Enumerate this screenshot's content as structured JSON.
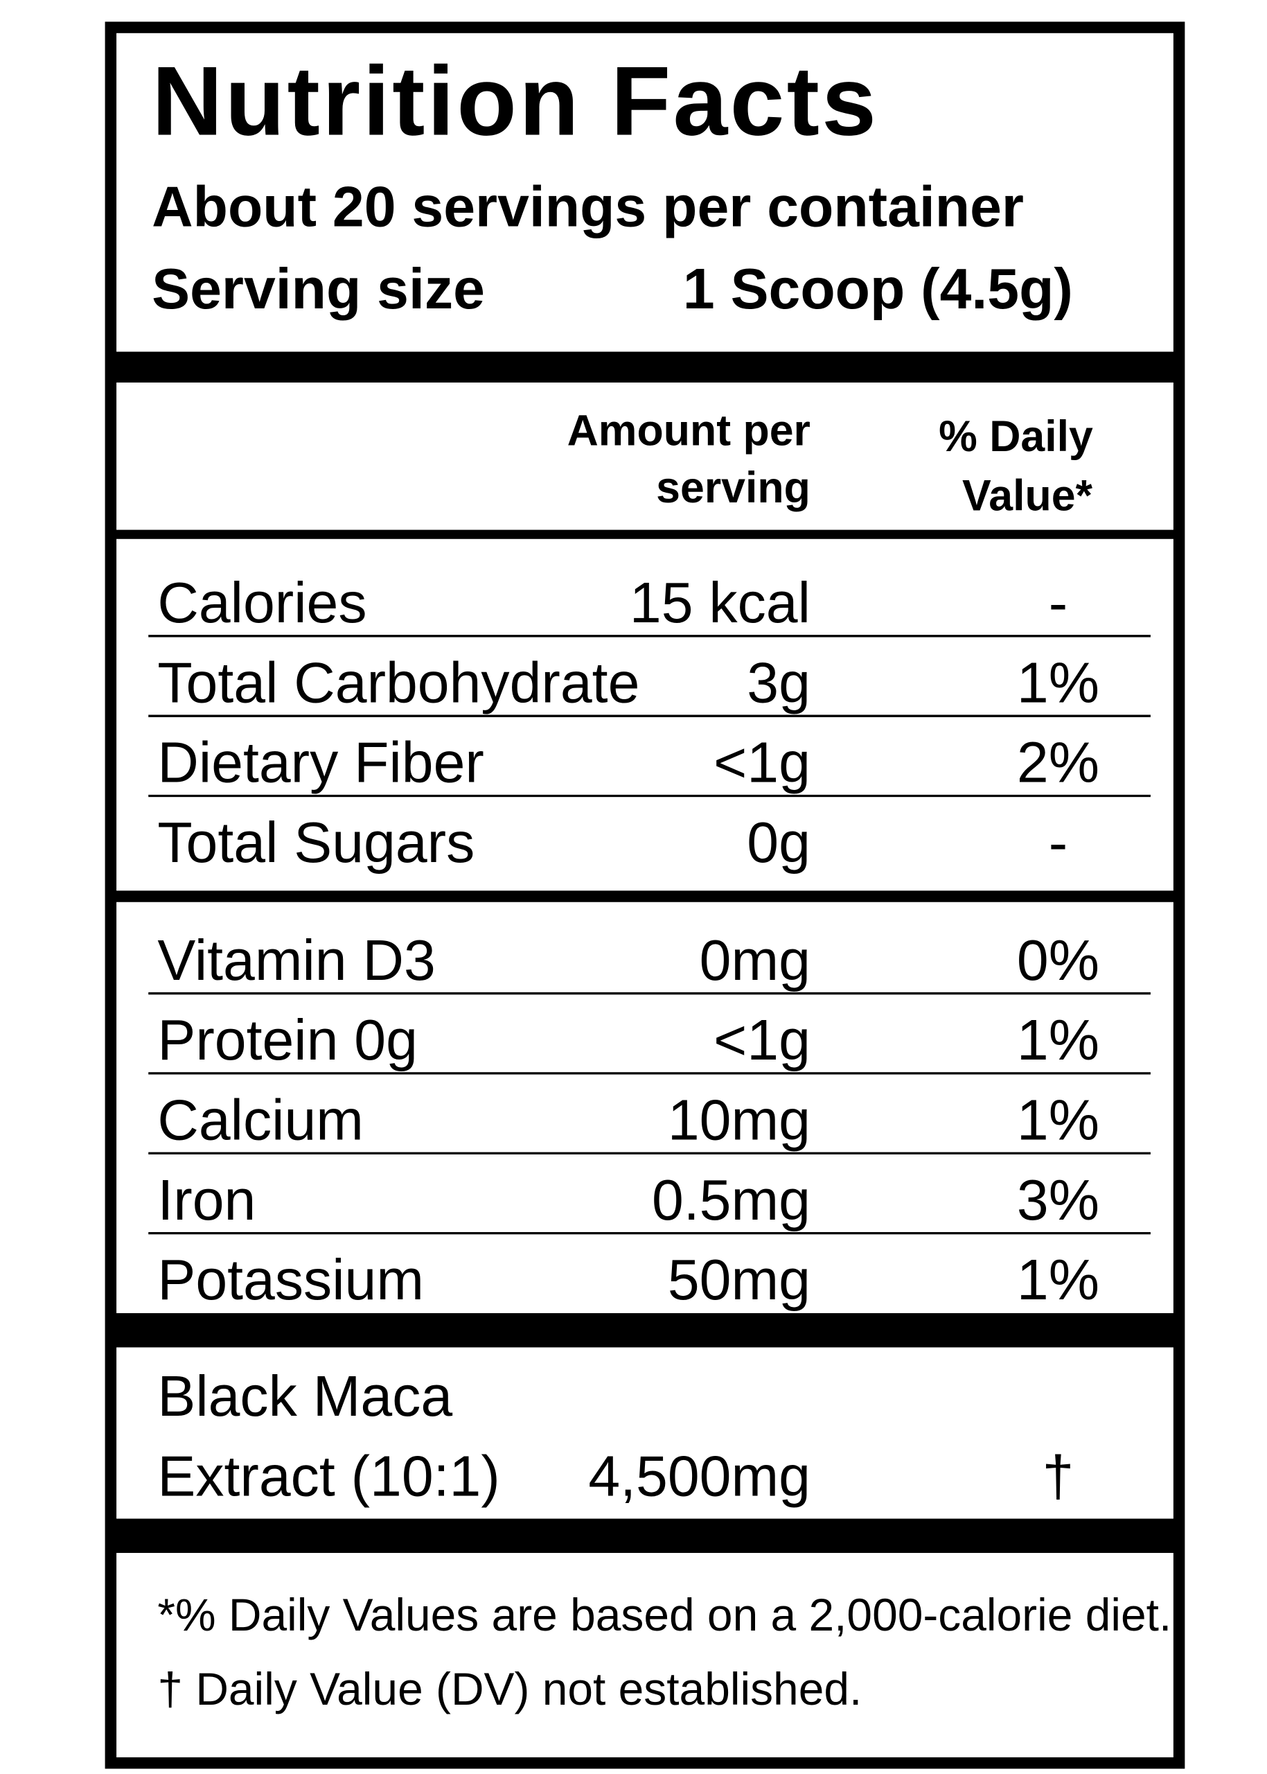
{
  "title": "Nutrition Facts",
  "servings_per_container": "About 20 servings per container",
  "serving_size": {
    "label": "Serving size",
    "value": "1 Scoop (4.5g)"
  },
  "columns": {
    "amount": [
      "Amount per",
      "serving"
    ],
    "daily_value": [
      "% Daily",
      "Value*"
    ]
  },
  "sections": [
    {
      "rows": [
        {
          "name": [
            "Calories"
          ],
          "amount": "15 kcal",
          "daily_value": "-"
        },
        {
          "name": [
            "Total Carbohydrate"
          ],
          "amount": "3g",
          "daily_value": "1%"
        },
        {
          "name": [
            "Dietary Fiber"
          ],
          "amount": "<1g",
          "daily_value": "2%"
        },
        {
          "name": [
            "Total Sugars"
          ],
          "amount": "0g",
          "daily_value": "-"
        }
      ]
    },
    {
      "rows": [
        {
          "name": [
            "Vitamin D3"
          ],
          "amount": "0mg",
          "daily_value": "0%"
        },
        {
          "name": [
            "Protein 0g"
          ],
          "amount": "<1g",
          "daily_value": "1%"
        },
        {
          "name": [
            "Calcium"
          ],
          "amount": "10mg",
          "daily_value": "1%"
        },
        {
          "name": [
            "Iron"
          ],
          "amount": "0.5mg",
          "daily_value": "3%"
        },
        {
          "name": [
            "Potassium"
          ],
          "amount": "50mg",
          "daily_value": "1%"
        }
      ]
    },
    {
      "rows": [
        {
          "name": [
            "Black Maca",
            "Extract (10:1)"
          ],
          "amount": "4,500mg",
          "daily_value": "†"
        }
      ]
    }
  ],
  "footnotes": [
    "*% Daily Values are based on a 2,000-calorie diet.",
    "† Daily Value (DV) not established."
  ]
}
